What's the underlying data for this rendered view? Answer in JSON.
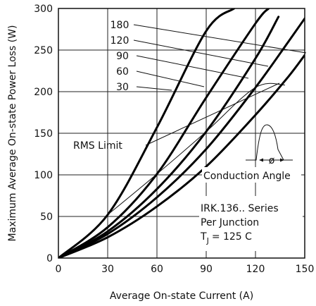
{
  "chart_data": {
    "type": "line",
    "xlabel": "Average On-state Current (A)",
    "ylabel": "Maximum Average On-state Power Loss (W)",
    "xlim": [
      0,
      150
    ],
    "ylim": [
      0,
      300
    ],
    "xticks": [
      "0",
      "30",
      "60",
      "90",
      "120",
      "150"
    ],
    "yticks": [
      "0",
      "50",
      "100",
      "150",
      "200",
      "250",
      "300"
    ],
    "grid": true,
    "series": [
      {
        "name": "180",
        "x": [
          0,
          30,
          60,
          90,
          120,
          140,
          150
        ],
        "y": [
          0,
          25,
          62,
          110,
          172,
          218,
          244
        ]
      },
      {
        "name": "120",
        "x": [
          0,
          30,
          60,
          90,
          120,
          140,
          150
        ],
        "y": [
          0,
          29,
          73,
          131,
          205,
          260,
          288
        ]
      },
      {
        "name": "90",
        "x": [
          0,
          30,
          60,
          90,
          120,
          134
        ],
        "y": [
          0,
          32,
          83,
          152,
          240,
          290
        ]
      },
      {
        "name": "60",
        "x": [
          0,
          30,
          60,
          90,
          120,
          128
        ],
        "y": [
          0,
          37,
          101,
          193,
          282,
          300
        ]
      },
      {
        "name": "30",
        "x": [
          0,
          30,
          60,
          90,
          107
        ],
        "y": [
          0,
          52,
          157,
          273,
          300
        ]
      }
    ],
    "rms_limit": {
      "label": "RMS Limit",
      "x": [
        30,
        60,
        90,
        120,
        138
      ],
      "y": [
        52,
        101,
        152,
        205,
        208
      ]
    },
    "annotations": {
      "conduction_angle": "Conduction Angle",
      "phi_symbol": "ø",
      "series_name": "IRK.136.. Series",
      "per_junction": "Per Junction",
      "tj_prefix": "T",
      "tj_sub": "J",
      "tj_value": "= 125 C"
    }
  }
}
